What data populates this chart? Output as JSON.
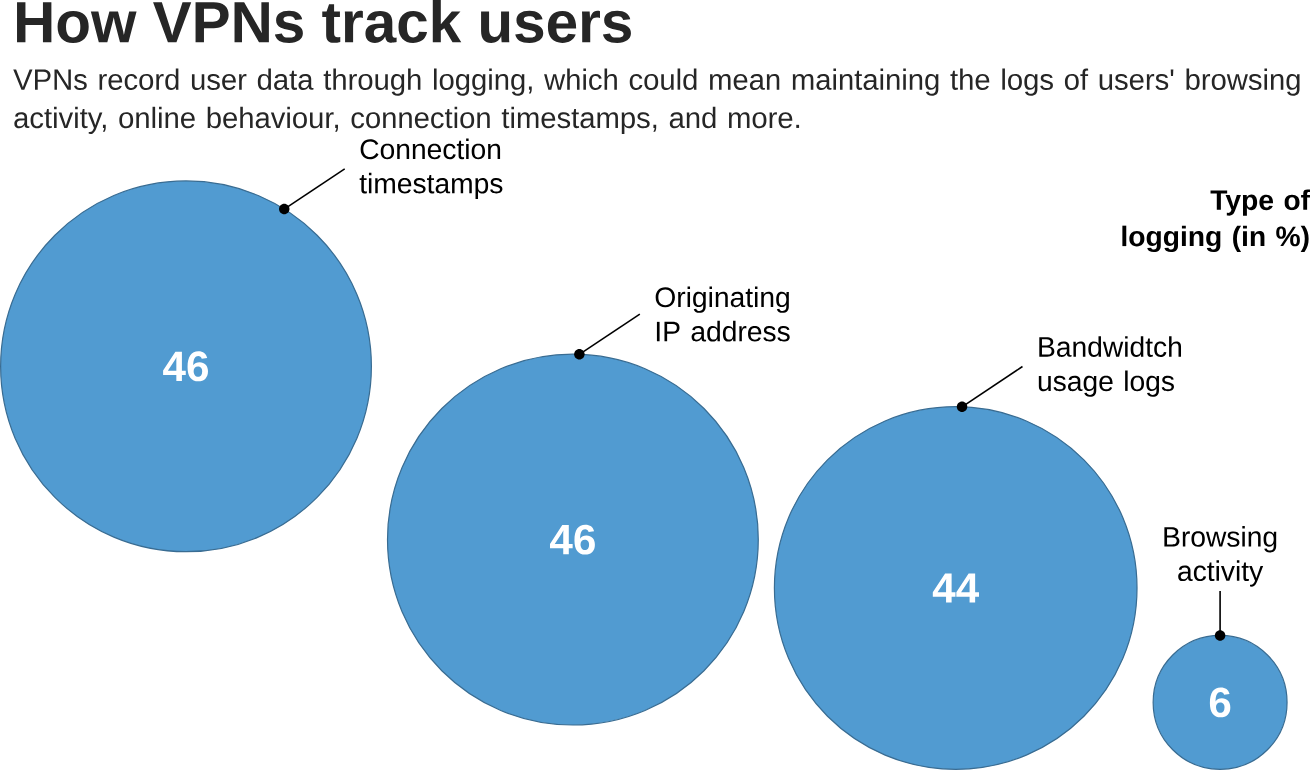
{
  "chart_data": {
    "type": "other",
    "title": "How VPNs track users",
    "subtitle": "VPNs record user data through logging, which could mean maintaining the logs of users' browsing activity, online behaviour, connection timestamps, and more.",
    "annotations": [
      "Type of logging (in %)"
    ],
    "categories": [
      "Connection timestamps",
      "Originating IP address",
      "Bandwidtch usage logs",
      "Browsing activity"
    ],
    "values": [
      46,
      46,
      44,
      6
    ],
    "color": "#519bd1",
    "data_labels": true
  }
}
